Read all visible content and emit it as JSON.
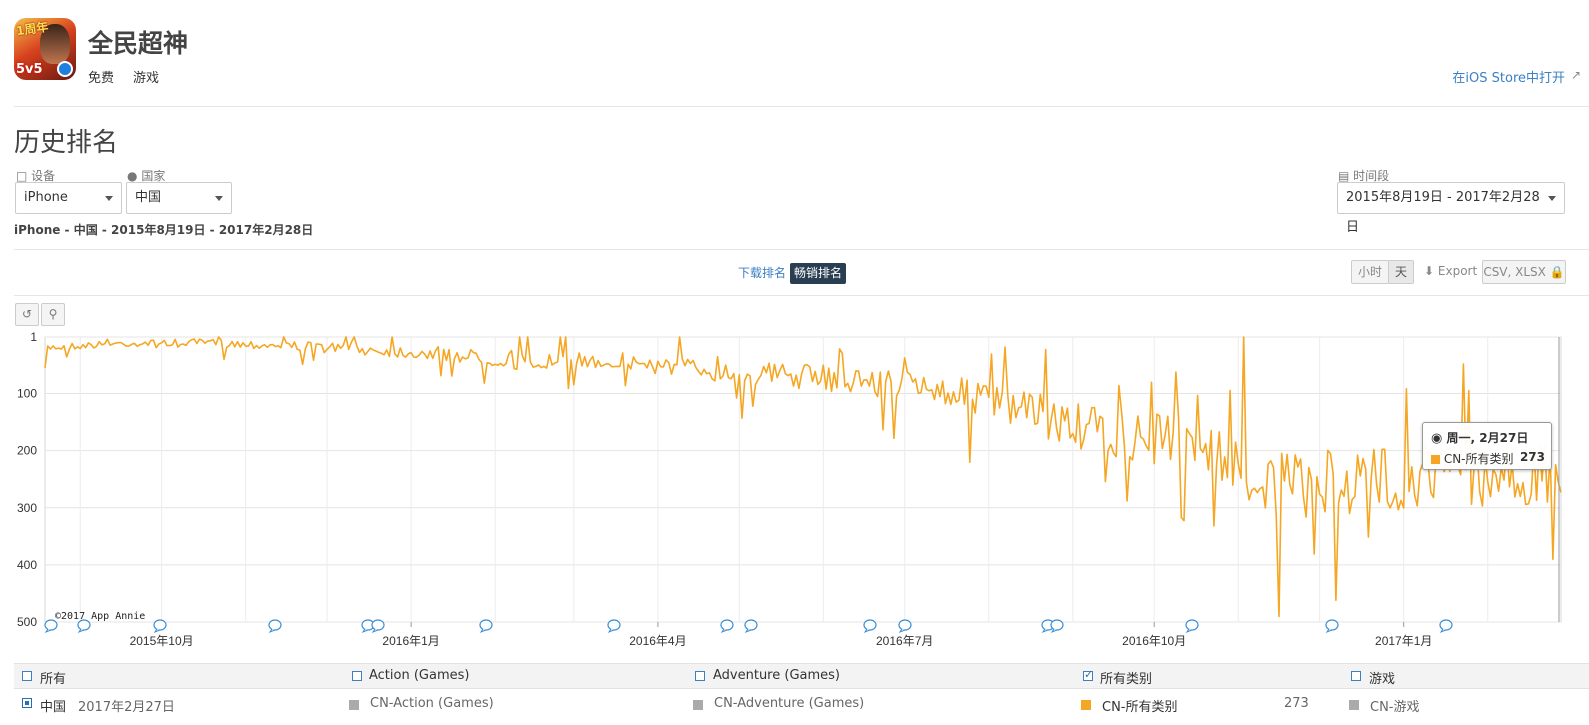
{
  "app": {
    "name": "全民超神",
    "price": "免费",
    "category": "游戏",
    "store_link": "在iOS Store中打开",
    "icon_badges": [
      "1周年",
      "5v5"
    ]
  },
  "history": {
    "title": "历史排名",
    "device_label": "设备",
    "device_value": "iPhone",
    "country_label": "国家",
    "country_value": "中国",
    "period_label": "时间段",
    "period_value": "2015年8月19日 - 2017年2月28日",
    "summary": "iPhone - 中国 - 2015年8月19日 - 2017年2月28日"
  },
  "tabs": [
    {
      "label": "下载排名",
      "active": false
    },
    {
      "label": "畅销排名",
      "active": true
    }
  ],
  "controls": {
    "hour": "小时",
    "day": "天",
    "export": "Export",
    "format": "CSV, XLSX"
  },
  "chart_data": {
    "type": "line",
    "yaxis_reversed": true,
    "ylim": [
      1,
      500
    ],
    "yticks": [
      "1",
      "100",
      "200",
      "300",
      "400",
      "500"
    ],
    "xticks": [
      "2015年10月",
      "2016年1月",
      "2016年4月",
      "2016年7月",
      "2016年10月",
      "2017年1月"
    ],
    "x_range": [
      "2015-08-19",
      "2017-02-28"
    ],
    "copyright": "©2017 App Annie",
    "series": [
      {
        "name": "CN-所有类别",
        "color": "#f5a623",
        "monthly_rank_levels": [
          {
            "month": "2015-08",
            "rank": 20
          },
          {
            "month": "2015-09",
            "rank": 12
          },
          {
            "month": "2015-10",
            "rank": 10
          },
          {
            "month": "2015-11",
            "rank": 15
          },
          {
            "month": "2015-12",
            "rank": 22
          },
          {
            "month": "2016-01",
            "rank": 30
          },
          {
            "month": "2016-02",
            "rank": 45
          },
          {
            "month": "2016-03",
            "rank": 40
          },
          {
            "month": "2016-04",
            "rank": 55
          },
          {
            "month": "2016-05",
            "rank": 65
          },
          {
            "month": "2016-06",
            "rank": 75
          },
          {
            "month": "2016-07",
            "rank": 90
          },
          {
            "month": "2016-08",
            "rank": 130
          },
          {
            "month": "2016-09",
            "rank": 170
          },
          {
            "month": "2016-10",
            "rank": 180
          },
          {
            "month": "2016-11",
            "rank": 260
          },
          {
            "month": "2016-12",
            "rank": 250
          },
          {
            "month": "2017-01",
            "rank": 230
          },
          {
            "month": "2017-02",
            "rank": 240
          }
        ]
      }
    ],
    "tooltip": {
      "date": "周一, 2月27日",
      "series": "CN-所有类别",
      "value": "273"
    }
  },
  "legend": {
    "headers": [
      {
        "label": "所有",
        "checked": false
      },
      {
        "label": "Action (Games)",
        "checked": false
      },
      {
        "label": "Adventure (Games)",
        "checked": false
      },
      {
        "label": "所有类别",
        "checked": true
      },
      {
        "label": "游戏",
        "checked": false
      }
    ],
    "row": {
      "country": "中国",
      "date": "2017年2月27日",
      "items": [
        {
          "label": "CN-Action (Games)",
          "color": "#aaaaaa",
          "value": ""
        },
        {
          "label": "CN-Adventure (Games)",
          "color": "#aaaaaa",
          "value": ""
        },
        {
          "label": "CN-所有类别",
          "color": "#f5a623",
          "value": "273"
        },
        {
          "label": "CN-游戏",
          "color": "#aaaaaa",
          "value": ""
        }
      ]
    }
  }
}
